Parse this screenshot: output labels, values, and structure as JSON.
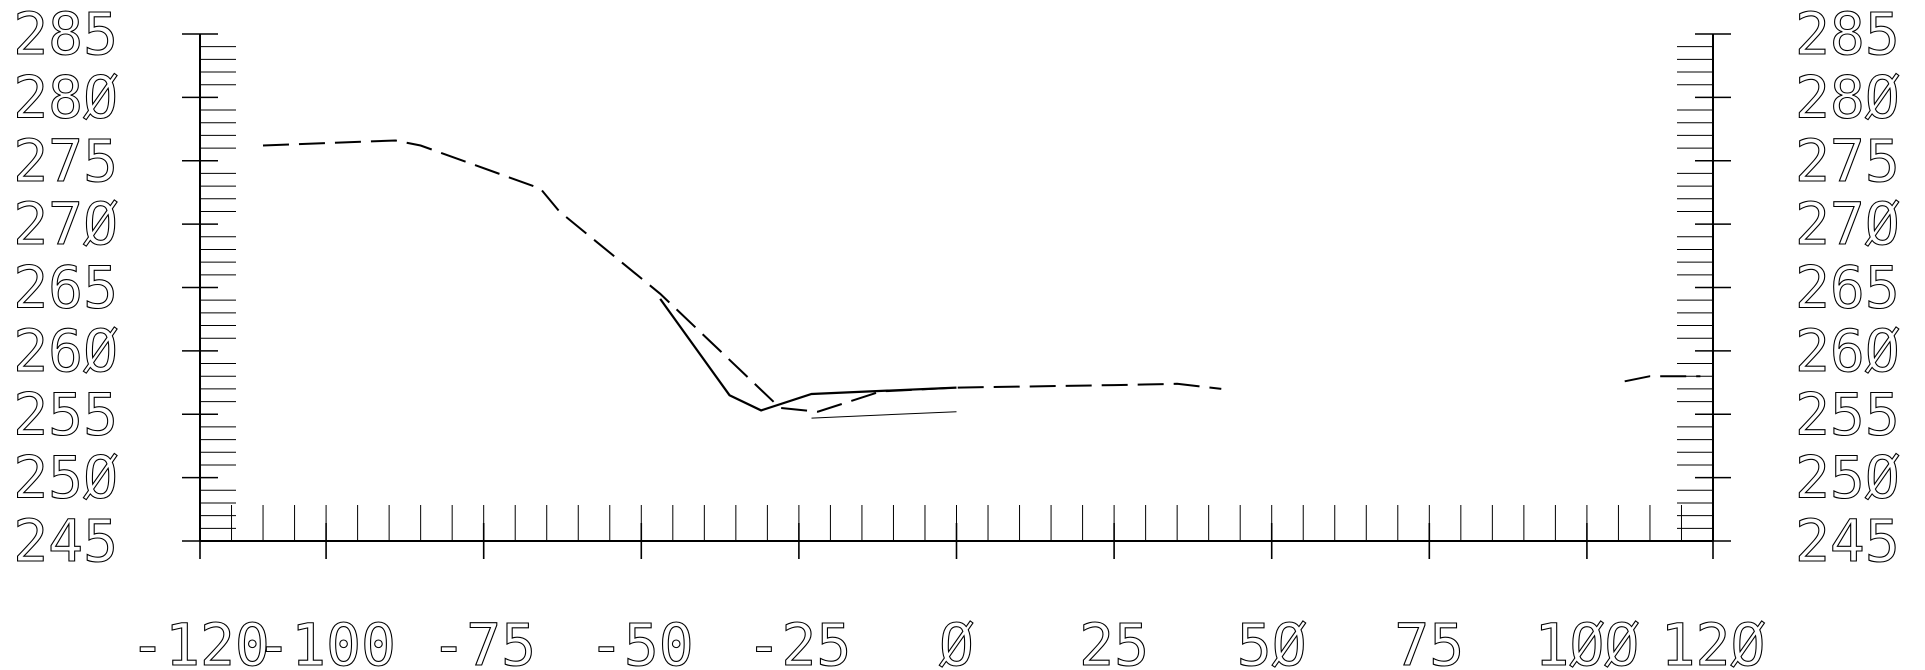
{
  "chart_data": {
    "type": "line",
    "title": "",
    "xlabel": "",
    "ylabel": "",
    "xlim": [
      -120,
      120
    ],
    "ylim": [
      245,
      285
    ],
    "x_ticks": [
      -120,
      -100,
      -75,
      -50,
      -25,
      0,
      25,
      50,
      75,
      100,
      120
    ],
    "x_tick_labels": [
      "-120",
      "-100",
      "-75",
      "-50",
      "-25",
      "Ø",
      "25",
      "5Ø",
      "75",
      "1ØØ",
      "12Ø"
    ],
    "y_ticks": [
      245,
      250,
      255,
      260,
      265,
      270,
      275,
      280,
      285
    ],
    "y_tick_labels": [
      "245",
      "25Ø",
      "255",
      "26Ø",
      "265",
      "27Ø",
      "275",
      "28Ø",
      "285"
    ],
    "grid": false,
    "legend": "none",
    "series": [
      {
        "style": "dashed",
        "color": "#000000",
        "segments": [
          [
            [
              -110,
              276.2
            ],
            [
              -89,
              276.6
            ],
            [
              -85,
              276.2
            ],
            [
              -66,
              272.8
            ],
            [
              -63,
              271
            ],
            [
              -47,
              264.5
            ],
            [
              -28,
              255.5
            ],
            [
              -22,
              255.2
            ],
            [
              -12,
              256.8
            ],
            [
              0,
              257.1
            ],
            [
              25,
              257.3
            ],
            [
              35,
              257.4
            ],
            [
              42,
              257
            ]
          ],
          [
            [
              106,
              257.6
            ],
            [
              110,
              258
            ],
            [
              118,
              258
            ]
          ]
        ]
      },
      {
        "style": "solid",
        "color": "#000000",
        "segments": [
          [
            [
              -47,
              264.1
            ],
            [
              -36,
              256.5
            ],
            [
              -31,
              255.3
            ],
            [
              -23,
              256.6
            ],
            [
              0,
              257.1
            ]
          ]
        ]
      },
      {
        "style": "thin",
        "color": "#000000",
        "segments": [
          [
            [
              -23,
              254.7
            ],
            [
              0,
              255.2
            ]
          ]
        ]
      }
    ]
  }
}
